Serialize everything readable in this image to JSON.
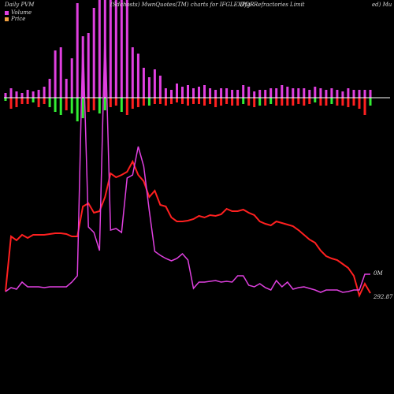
{
  "header": {
    "left": "Daily PVM",
    "middle": "(Sdchosts) MwnQuotes(TM) charts for IFGLEXPOR",
    "right": "(Ifgl Refractories Limit",
    "right_tail": "ed) Mu"
  },
  "legend": [
    {
      "label": "Volume",
      "color": "#e040e0"
    },
    {
      "label": "Price",
      "color": "#f0a040"
    }
  ],
  "colors": {
    "up": "#33ee33",
    "down": "#ff2020",
    "volume": "#e040e0",
    "price": "#ff2020",
    "baseline": "#ffffff"
  },
  "chart_data": {
    "type": "line",
    "x": [
      1,
      2,
      3,
      4,
      5,
      6,
      7,
      8,
      9,
      10,
      11,
      12,
      13,
      14,
      15,
      16,
      17,
      18,
      19,
      20,
      21,
      22,
      23,
      24,
      25,
      26,
      27,
      28,
      29,
      30,
      31,
      32,
      33,
      34,
      35,
      36,
      37,
      38,
      39,
      40,
      41,
      42,
      43,
      44,
      45,
      46,
      47,
      48,
      49,
      50,
      51,
      52,
      53,
      54,
      55,
      56,
      57,
      58,
      59,
      60,
      61,
      62,
      63,
      64,
      65,
      66,
      67
    ],
    "series": [
      {
        "name": "Price",
        "values": [
          370,
          300,
          305,
          298,
          302,
          298,
          298,
          298,
          297,
          296,
          296,
          297,
          300,
          300,
          262,
          258,
          270,
          268,
          250,
          220,
          225,
          222,
          218,
          205,
          222,
          230,
          250,
          242,
          260,
          262,
          276,
          281,
          281,
          280,
          278,
          274,
          276,
          273,
          274,
          272,
          265,
          268,
          268,
          266,
          270,
          273,
          281,
          284,
          286,
          281,
          283,
          285,
          287,
          292,
          298,
          304,
          308,
          318,
          325,
          328,
          330,
          335,
          340,
          350,
          375,
          360,
          372
        ]
      },
      {
        "name": "Volume",
        "values": [
          370,
          365,
          367,
          358,
          364,
          364,
          364,
          365,
          364,
          364,
          364,
          364,
          358,
          350,
          48,
          288,
          295,
          318,
          36,
          292,
          290,
          295,
          226,
          222,
          186,
          211,
          267,
          319,
          324,
          328,
          331,
          328,
          322,
          330,
          366,
          358,
          358,
          357,
          356,
          358,
          357,
          358,
          350,
          350,
          362,
          364,
          360,
          365,
          368,
          356,
          364,
          358,
          367,
          365,
          364,
          366,
          368,
          371,
          368,
          368,
          368,
          371,
          370,
          368,
          368,
          348,
          348
        ]
      }
    ],
    "volume_bars": [
      -6,
      -12,
      -8,
      -6,
      -10,
      -8,
      -10,
      -14,
      -24,
      -60,
      -64,
      -24,
      -50,
      -120,
      -78,
      -82,
      -114,
      -140,
      -164,
      -174,
      -162,
      -160,
      -132,
      -64,
      -56,
      -38,
      -26,
      -36,
      -28,
      -12,
      -10,
      -18,
      -14,
      -16,
      -12,
      -14,
      -16,
      -12,
      -10,
      -12,
      -12,
      -10,
      -10,
      -16,
      -14,
      -8,
      -10,
      -10,
      -12,
      -12,
      -16,
      -14,
      -12,
      -12,
      -12,
      -10,
      -14,
      -12,
      -10,
      -12,
      -10,
      -8,
      -12,
      -10,
      -10,
      -10,
      -10
    ],
    "change_bars": [
      4,
      14,
      12,
      8,
      8,
      6,
      12,
      8,
      12,
      18,
      22,
      16,
      20,
      30,
      26,
      18,
      16,
      20,
      16,
      12,
      10,
      18,
      22,
      14,
      12,
      10,
      10,
      8,
      8,
      10,
      8,
      6,
      8,
      10,
      8,
      8,
      10,
      8,
      12,
      10,
      8,
      10,
      10,
      8,
      10,
      12,
      10,
      10,
      8,
      10,
      10,
      10,
      10,
      8,
      10,
      8,
      6,
      10,
      10,
      8,
      10,
      10,
      12,
      10,
      14,
      22,
      10
    ],
    "change_dir": [
      "up",
      "down",
      "down",
      "down",
      "down",
      "up",
      "down",
      "down",
      "up",
      "up",
      "up",
      "down",
      "up",
      "up",
      "up",
      "down",
      "down",
      "up",
      "up",
      "down",
      "down",
      "up",
      "down",
      "down",
      "down",
      "down",
      "up",
      "down",
      "down",
      "down",
      "down",
      "down",
      "down",
      "down",
      "down",
      "down",
      "down",
      "down",
      "down",
      "down",
      "down",
      "down",
      "down",
      "up",
      "down",
      "down",
      "up",
      "down",
      "up",
      "down",
      "down",
      "down",
      "down",
      "down",
      "down",
      "down",
      "up",
      "down",
      "down",
      "up",
      "down",
      "down",
      "down",
      "down",
      "down",
      "down",
      "up"
    ],
    "ylim": [
      400,
      0
    ],
    "labels": {
      "volume_last": "0M",
      "price_last": "292.87"
    }
  }
}
